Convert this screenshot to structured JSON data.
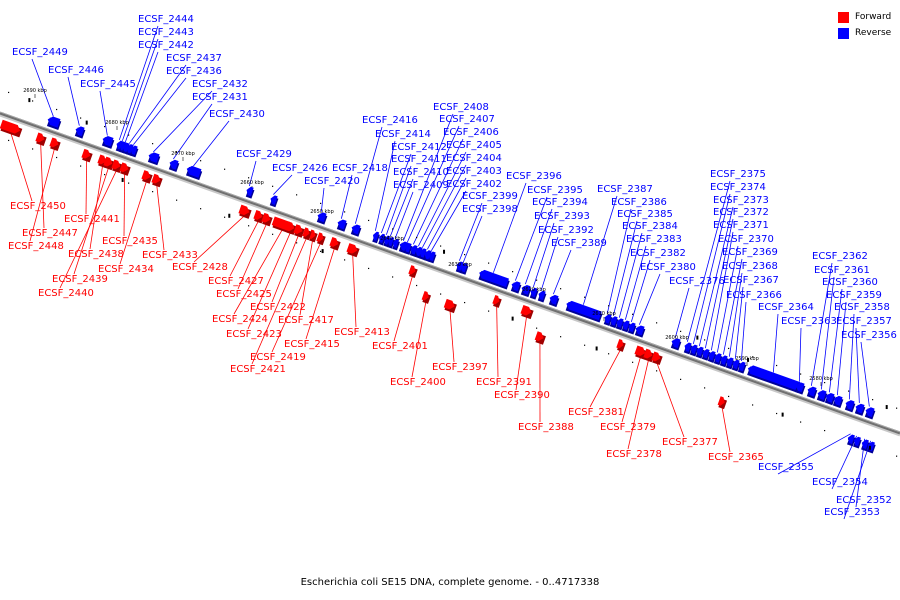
{
  "caption": "Escherichia coli SE15 DNA, complete genome. - 0..4717338",
  "legend": {
    "items": [
      {
        "label": "Forward",
        "color": "#ff0000"
      },
      {
        "label": "Reverse",
        "color": "#0000ff"
      }
    ]
  },
  "colors": {
    "forward": "#ff0000",
    "reverse": "#0000ff",
    "axis": "#707070"
  },
  "axis": {
    "ticks": [
      "2690 kbp",
      "2680 kbp",
      "2670 kbp",
      "2660 kbp",
      "2650 kbp",
      "2640 kbp",
      "2630 kbp",
      "2620 kbp",
      "2610 kbp",
      "2600 kbp",
      "2590 kbp",
      "2580 kbp",
      "2570 kbp"
    ]
  },
  "reverse_genes": [
    "ECSF_2449",
    "ECSF_2446",
    "ECSF_2445",
    "ECSF_2444",
    "ECSF_2443",
    "ECSF_2442",
    "ECSF_2437",
    "ECSF_2436",
    "ECSF_2432",
    "ECSF_2431",
    "ECSF_2430",
    "ECSF_2429",
    "ECSF_2426",
    "ECSF_2420",
    "ECSF_2418",
    "ECSF_2416",
    "ECSF_2414",
    "ECSF_2412",
    "ECSF_2411",
    "ECSF_2410",
    "ECSF_2409",
    "ECSF_2408",
    "ECSF_2407",
    "ECSF_2406",
    "ECSF_2405",
    "ECSF_2404",
    "ECSF_2403",
    "ECSF_2402",
    "ECSF_2399",
    "ECSF_2398",
    "ECSF_2396",
    "ECSF_2395",
    "ECSF_2394",
    "ECSF_2393",
    "ECSF_2392",
    "ECSF_2389",
    "ECSF_2387",
    "ECSF_2386",
    "ECSF_2385",
    "ECSF_2384",
    "ECSF_2383",
    "ECSF_2382",
    "ECSF_2380",
    "ECSF_2376",
    "ECSF_2375",
    "ECSF_2374",
    "ECSF_2373",
    "ECSF_2372",
    "ECSF_2371",
    "ECSF_2370",
    "ECSF_2369",
    "ECSF_2368",
    "ECSF_2367",
    "ECSF_2366",
    "ECSF_2364",
    "ECSF_2363",
    "ECSF_2362",
    "ECSF_2361",
    "ECSF_2360",
    "ECSF_2359",
    "ECSF_2358",
    "ECSF_2357",
    "ECSF_2356",
    "ECSF_2355",
    "ECSF_2354",
    "ECSF_2352",
    "ECSF_2353"
  ],
  "forward_genes": [
    "ECSF_2450",
    "ECSF_2447",
    "ECSF_2448",
    "ECSF_2441",
    "ECSF_2438",
    "ECSF_2439",
    "ECSF_2440",
    "ECSF_2435",
    "ECSF_2434",
    "ECSF_2433",
    "ECSF_2428",
    "ECSF_2427",
    "ECSF_2425",
    "ECSF_2424",
    "ECSF_2423",
    "ECSF_2422",
    "ECSF_2417",
    "ECSF_2419",
    "ECSF_2415",
    "ECSF_2421",
    "ECSF_2413",
    "ECSF_2401",
    "ECSF_2400",
    "ECSF_2397",
    "ECSF_2391",
    "ECSF_2390",
    "ECSF_2388",
    "ECSF_2381",
    "ECSF_2379",
    "ECSF_2378",
    "ECSF_2377",
    "ECSF_2365"
  ]
}
